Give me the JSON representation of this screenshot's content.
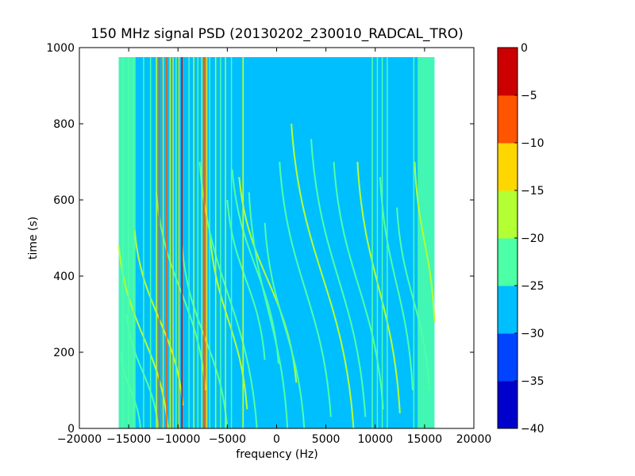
{
  "chart_data": {
    "type": "heatmap",
    "title": "150 MHz signal PSD (20130202_230010_RADCAL_TRO)",
    "xlabel": "frequency (Hz)",
    "ylabel": "time (s)",
    "xlim": [
      -20000,
      20000
    ],
    "ylim": [
      0,
      1000
    ],
    "xticks": [
      -20000,
      -15000,
      -10000,
      -5000,
      0,
      5000,
      10000,
      15000,
      20000
    ],
    "xtick_labels": [
      "−20000",
      "−15000",
      "−10000",
      "−5000",
      "0",
      "5000",
      "10000",
      "15000",
      "20000"
    ],
    "yticks": [
      0,
      200,
      400,
      600,
      800,
      1000
    ],
    "ytick_labels": [
      "0",
      "200",
      "400",
      "600",
      "800",
      "1000"
    ],
    "data_extent": {
      "freq": [
        -16000,
        16000
      ],
      "time": [
        0,
        975
      ]
    },
    "background_level": -27.5,
    "edge_bands": [
      {
        "f0": -16000,
        "f1": -14300,
        "level": -22.5
      },
      {
        "f0": 14300,
        "f1": 16000,
        "level": -22.5
      }
    ],
    "lines": [
      {
        "f": -15600,
        "w": 120,
        "level": -22.5
      },
      {
        "f": -15000,
        "w": 100,
        "level": -22.5
      },
      {
        "f": -14500,
        "w": 100,
        "level": -22.5
      },
      {
        "f": -13500,
        "w": 90,
        "level": -22.5
      },
      {
        "f": -12800,
        "w": 90,
        "level": -22.5
      },
      {
        "f": -12200,
        "w": 90,
        "level": -17.5
      },
      {
        "f": -11900,
        "w": 140,
        "level": -7.5
      },
      {
        "f": -11500,
        "w": 120,
        "level": -12.5
      },
      {
        "f": -11150,
        "w": 110,
        "level": -7.5
      },
      {
        "f": -10800,
        "w": 110,
        "level": -17.5
      },
      {
        "f": -10500,
        "w": 110,
        "level": -12.5
      },
      {
        "f": -10200,
        "w": 100,
        "level": -22.5
      },
      {
        "f": -9900,
        "w": 110,
        "level": -12.5
      },
      {
        "f": -9600,
        "w": 120,
        "level": -2.5
      },
      {
        "f": -8900,
        "w": 90,
        "level": -22.5
      },
      {
        "f": -8400,
        "w": 120,
        "level": -17.5
      },
      {
        "f": -8000,
        "w": 90,
        "level": -22.5
      },
      {
        "f": -7600,
        "w": 90,
        "level": -12.5
      },
      {
        "f": -7350,
        "w": 110,
        "level": -7.5
      },
      {
        "f": -7100,
        "w": 90,
        "level": -12.5
      },
      {
        "f": -6800,
        "w": 90,
        "level": -22.5
      },
      {
        "f": -6200,
        "w": 80,
        "level": -17.5
      },
      {
        "f": -5700,
        "w": 80,
        "level": -22.5
      },
      {
        "f": -5200,
        "w": 80,
        "level": -17.5
      },
      {
        "f": -4600,
        "w": 80,
        "level": -22.5
      },
      {
        "f": -3400,
        "w": 140,
        "level": -17.5
      },
      {
        "f": 9700,
        "w": 130,
        "level": -22.5
      },
      {
        "f": 10200,
        "w": 90,
        "level": -22.5
      },
      {
        "f": 10700,
        "w": 100,
        "level": -22.5
      },
      {
        "f": 11200,
        "w": 90,
        "level": -22.5
      },
      {
        "f": 13900,
        "w": 100,
        "level": -22.5
      }
    ],
    "tracks": [
      {
        "f0": -16000,
        "t0": 480,
        "f1": -11000,
        "t1": 0,
        "level": -17.5
      },
      {
        "f0": -14400,
        "t0": 520,
        "f1": -9500,
        "t1": 60,
        "level": -17.5
      },
      {
        "f0": -15200,
        "t0": 300,
        "f1": -12000,
        "t1": 0,
        "level": -22.5
      },
      {
        "f0": -15800,
        "t0": 200,
        "f1": -13800,
        "t1": 0,
        "level": -22.5
      },
      {
        "f0": -12200,
        "t0": 620,
        "f1": -7200,
        "t1": 100,
        "level": -22.5
      },
      {
        "f0": -9600,
        "t0": 480,
        "f1": -5000,
        "t1": 0,
        "level": -22.5
      },
      {
        "f0": -6800,
        "t0": 520,
        "f1": -3000,
        "t1": 50,
        "level": -17.5
      },
      {
        "f0": -7800,
        "t0": 700,
        "f1": -2000,
        "t1": 0,
        "level": -22.5
      },
      {
        "f0": -5000,
        "t0": 600,
        "f1": -1200,
        "t1": 180,
        "level": -22.5
      },
      {
        "f0": -4500,
        "t0": 680,
        "f1": 200,
        "t1": 170,
        "level": -22.5
      },
      {
        "f0": -3800,
        "t0": 660,
        "f1": 2000,
        "t1": 120,
        "level": -17.5
      },
      {
        "f0": -2800,
        "t0": 620,
        "f1": 1100,
        "t1": 0,
        "level": -22.5
      },
      {
        "f0": -1200,
        "t0": 540,
        "f1": 2800,
        "t1": 0,
        "level": -22.5
      },
      {
        "f0": 300,
        "t0": 700,
        "f1": 5500,
        "t1": 30,
        "level": -22.5
      },
      {
        "f0": 1500,
        "t0": 800,
        "f1": 7800,
        "t1": 0,
        "level": -17.5
      },
      {
        "f0": 3500,
        "t0": 760,
        "f1": 9000,
        "t1": 30,
        "level": -22.5
      },
      {
        "f0": 5800,
        "t0": 700,
        "f1": 10800,
        "t1": 50,
        "level": -22.5
      },
      {
        "f0": 8200,
        "t0": 700,
        "f1": 12500,
        "t1": 40,
        "level": -17.5
      },
      {
        "f0": 10500,
        "t0": 660,
        "f1": 13800,
        "t1": 100,
        "level": -22.5
      },
      {
        "f0": 12200,
        "t0": 580,
        "f1": 15500,
        "t1": 100,
        "level": -22.5
      },
      {
        "f0": 14000,
        "t0": 700,
        "f1": 16000,
        "t1": 280,
        "level": -17.5
      }
    ],
    "colorbar": {
      "levels": [
        -40,
        -35,
        -30,
        -25,
        -20,
        -15,
        -10,
        -5,
        0
      ],
      "tick_labels": [
        "−40",
        "−35",
        "−30",
        "−25",
        "−20",
        "−15",
        "−10",
        "−5",
        "0"
      ],
      "colors": [
        "#0000cc",
        "#0044ff",
        "#00bfff",
        "#4dffa6",
        "#b3ff33",
        "#ffd700",
        "#ff5500",
        "#cc0000"
      ]
    }
  }
}
